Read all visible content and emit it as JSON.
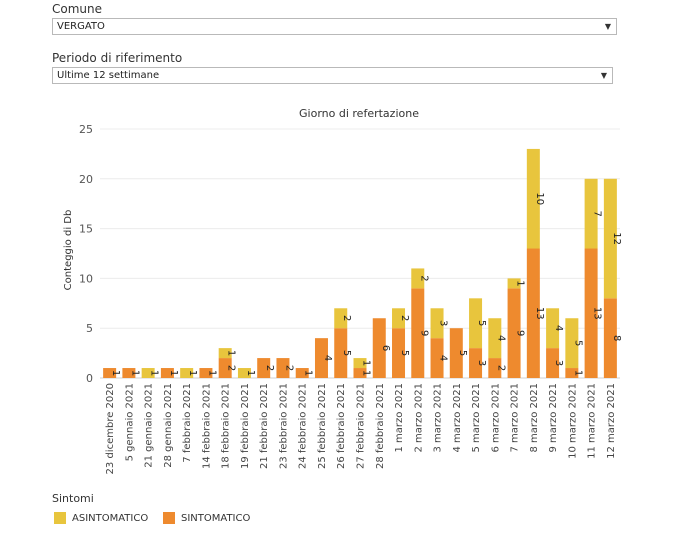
{
  "filters": {
    "comune": {
      "label": "Comune",
      "value": "VERGATO"
    },
    "periodo": {
      "label": "Periodo di riferimento",
      "value": "Ultime 12 settimane"
    }
  },
  "legend": {
    "title": "Sintomi",
    "items": [
      {
        "label": "ASINTOMATICO",
        "color": "#e8c53d"
      },
      {
        "label": "SINTOMATICO",
        "color": "#ee8a2e"
      }
    ]
  },
  "chart_data": {
    "type": "bar",
    "stacked": true,
    "title": "Giorno di refertazione",
    "ylabel": "Conteggio di Db",
    "xlabel": "",
    "ylim": [
      0,
      25
    ],
    "yticks": [
      0,
      5,
      10,
      15,
      20,
      25
    ],
    "grid": true,
    "categories": [
      "23 dicembre 2020",
      "5 gennaio 2021",
      "21 gennaio 2021",
      "28 gennaio 2021",
      "7 febbraio 2021",
      "14 febbraio 2021",
      "18 febbraio 2021",
      "19 febbraio 2021",
      "21 febbraio 2021",
      "23 febbraio 2021",
      "24 febbraio 2021",
      "25 febbraio 2021",
      "26 febbraio 2021",
      "27 febbraio 2021",
      "28 febbraio 2021",
      "1 marzo 2021",
      "2 marzo 2021",
      "3 marzo 2021",
      "4 marzo 2021",
      "5 marzo 2021",
      "6 marzo 2021",
      "7 marzo 2021",
      "8 marzo 2021",
      "9 marzo 2021",
      "10 marzo 2021",
      "11 marzo 2021",
      "12 marzo 2021"
    ],
    "series": [
      {
        "name": "SINTOMATICO",
        "color": "#ee8a2e",
        "values": [
          1,
          1,
          0,
          1,
          0,
          1,
          2,
          0,
          2,
          2,
          1,
          4,
          5,
          1,
          6,
          5,
          9,
          4,
          5,
          3,
          2,
          9,
          13,
          3,
          1,
          13,
          8
        ]
      },
      {
        "name": "ASINTOMATICO",
        "color": "#e8c53d",
        "values": [
          0,
          0,
          1,
          0,
          1,
          0,
          1,
          1,
          0,
          0,
          0,
          0,
          2,
          1,
          0,
          2,
          2,
          3,
          0,
          5,
          4,
          1,
          10,
          4,
          5,
          7,
          12
        ]
      }
    ]
  }
}
